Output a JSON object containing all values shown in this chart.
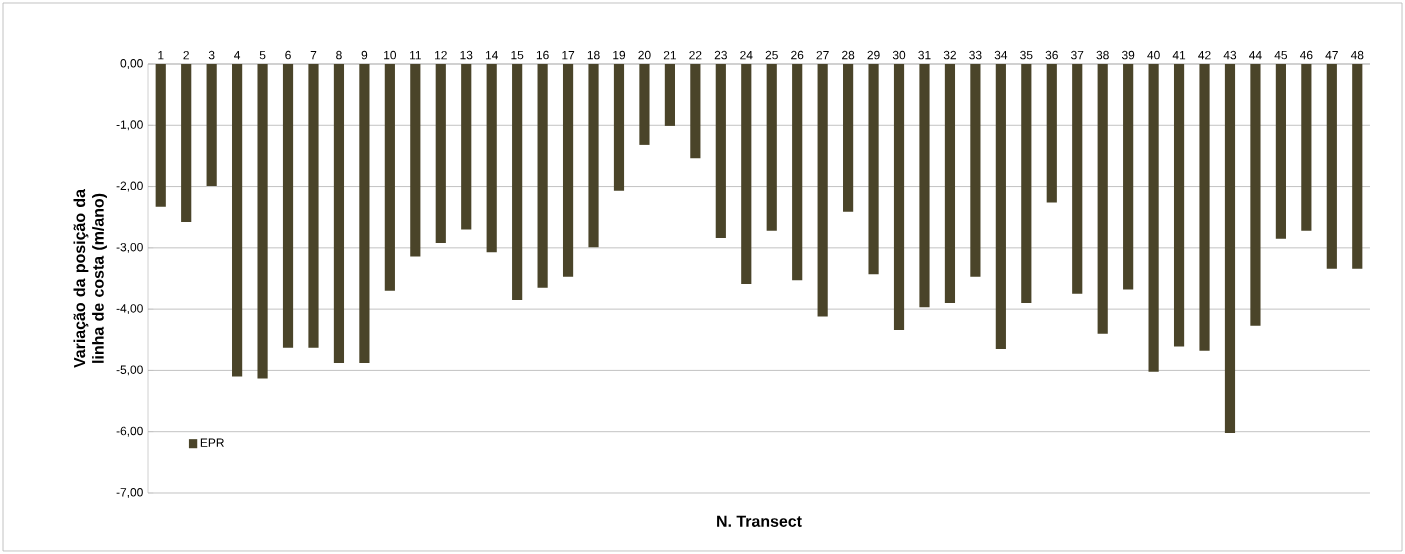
{
  "chart_data": {
    "type": "bar",
    "xlabel": "N. Transect",
    "ylabel": "Variação da posição da linha de costa (m/ano)",
    "categories": [
      "1",
      "2",
      "3",
      "4",
      "5",
      "6",
      "7",
      "8",
      "9",
      "10",
      "11",
      "12",
      "13",
      "14",
      "15",
      "16",
      "17",
      "18",
      "19",
      "20",
      "21",
      "22",
      "23",
      "24",
      "25",
      "26",
      "27",
      "28",
      "29",
      "30",
      "31",
      "32",
      "33",
      "34",
      "35",
      "36",
      "37",
      "38",
      "39",
      "40",
      "41",
      "42",
      "43",
      "44",
      "45",
      "46",
      "47",
      "48"
    ],
    "series": [
      {
        "name": "EPR",
        "color": "#4a4429",
        "values": [
          -2.33,
          -2.58,
          -1.99,
          -5.1,
          -5.13,
          -4.63,
          -4.63,
          -4.88,
          -4.88,
          -3.7,
          -3.14,
          -2.92,
          -2.7,
          -3.07,
          -3.85,
          -3.65,
          -3.47,
          -2.99,
          -2.07,
          -1.32,
          -1.01,
          -1.54,
          -2.84,
          -3.59,
          -2.72,
          -3.53,
          -4.12,
          -2.41,
          -3.43,
          -4.34,
          -3.97,
          -3.9,
          -3.47,
          -4.65,
          -3.9,
          -2.26,
          -3.75,
          -4.4,
          -3.68,
          -5.02,
          -4.61,
          -4.68,
          -6.02,
          -4.27,
          -2.85,
          -2.72,
          -3.34,
          -3.34
        ]
      }
    ],
    "ylim": [
      -7,
      0
    ],
    "yticks": [
      {
        "value": 0,
        "label": "0,00"
      },
      {
        "value": -1,
        "label": "-1,00"
      },
      {
        "value": -2,
        "label": "-2,00"
      },
      {
        "value": -3,
        "label": "-3,00"
      },
      {
        "value": -4,
        "label": "-4,00"
      },
      {
        "value": -5,
        "label": "-5,00"
      },
      {
        "value": -6,
        "label": "-6,00"
      },
      {
        "value": -7,
        "label": "-7,00"
      }
    ],
    "grid": "y",
    "legend": "bottom left"
  }
}
